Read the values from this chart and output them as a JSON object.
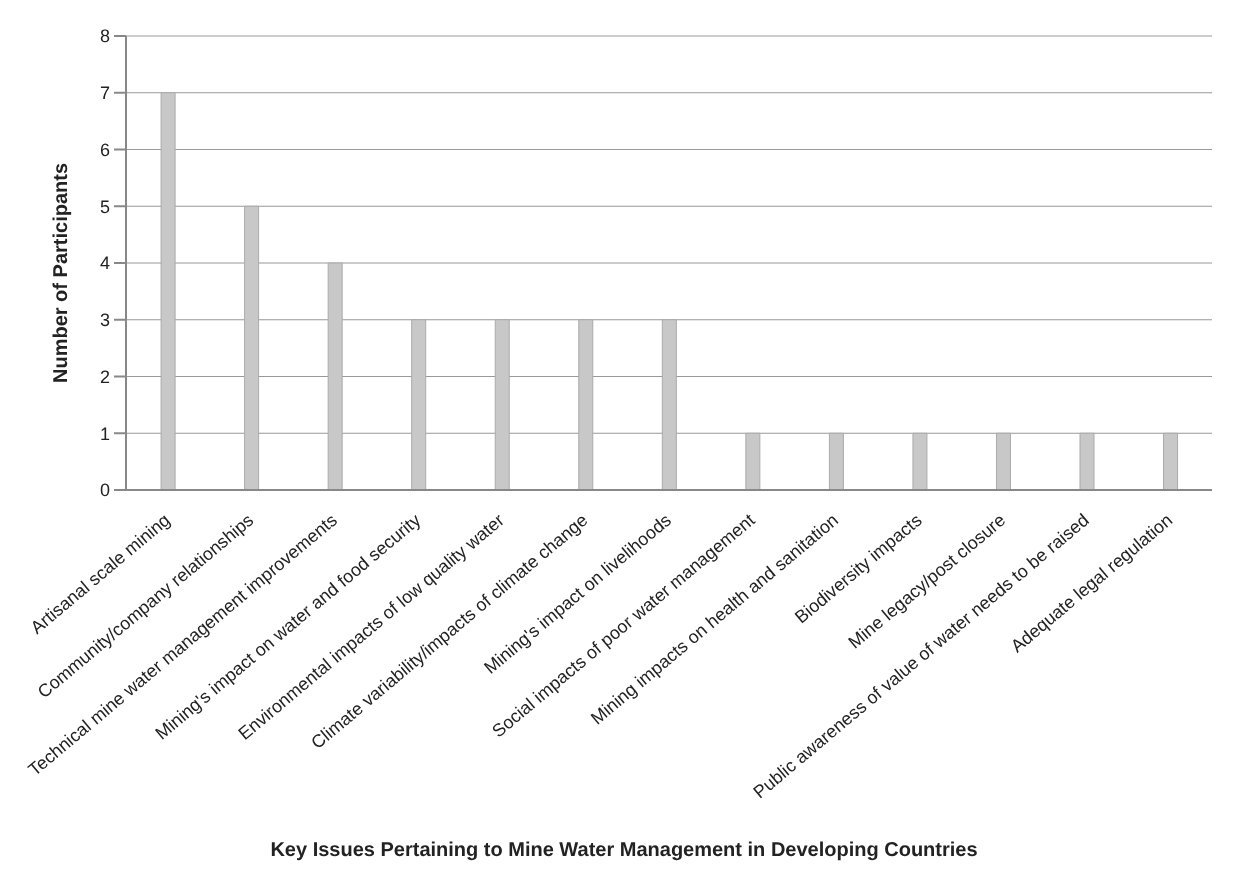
{
  "chart_data": {
    "type": "bar",
    "xlabel": "Key Issues Pertaining to Mine Water Management in Developing Countries",
    "ylabel": "Number of Participants",
    "categories": [
      "Artisanal scale mining",
      "Community/company relationships",
      "Technical mine water management improvements",
      "Mining's impact on water and food security",
      "Environmental impacts of low quality water",
      "Climate variability/impacts of climate change",
      "Mining's impact on livelihoods",
      "Social impacts of poor water management",
      "Mining impacts on health and sanitation",
      "Biodiversity impacts",
      "Mine legacy/post closure",
      "Public awareness of value of water needs to be raised",
      "Adequate legal regulation"
    ],
    "values": [
      7,
      5,
      4,
      3,
      3,
      3,
      3,
      1,
      1,
      1,
      1,
      1,
      1
    ],
    "color": "#c8c8c8",
    "ylim": [
      0,
      8
    ],
    "yticks": [
      0,
      1,
      2,
      3,
      4,
      5,
      6,
      7,
      8
    ],
    "grid": "y",
    "legend": false
  }
}
